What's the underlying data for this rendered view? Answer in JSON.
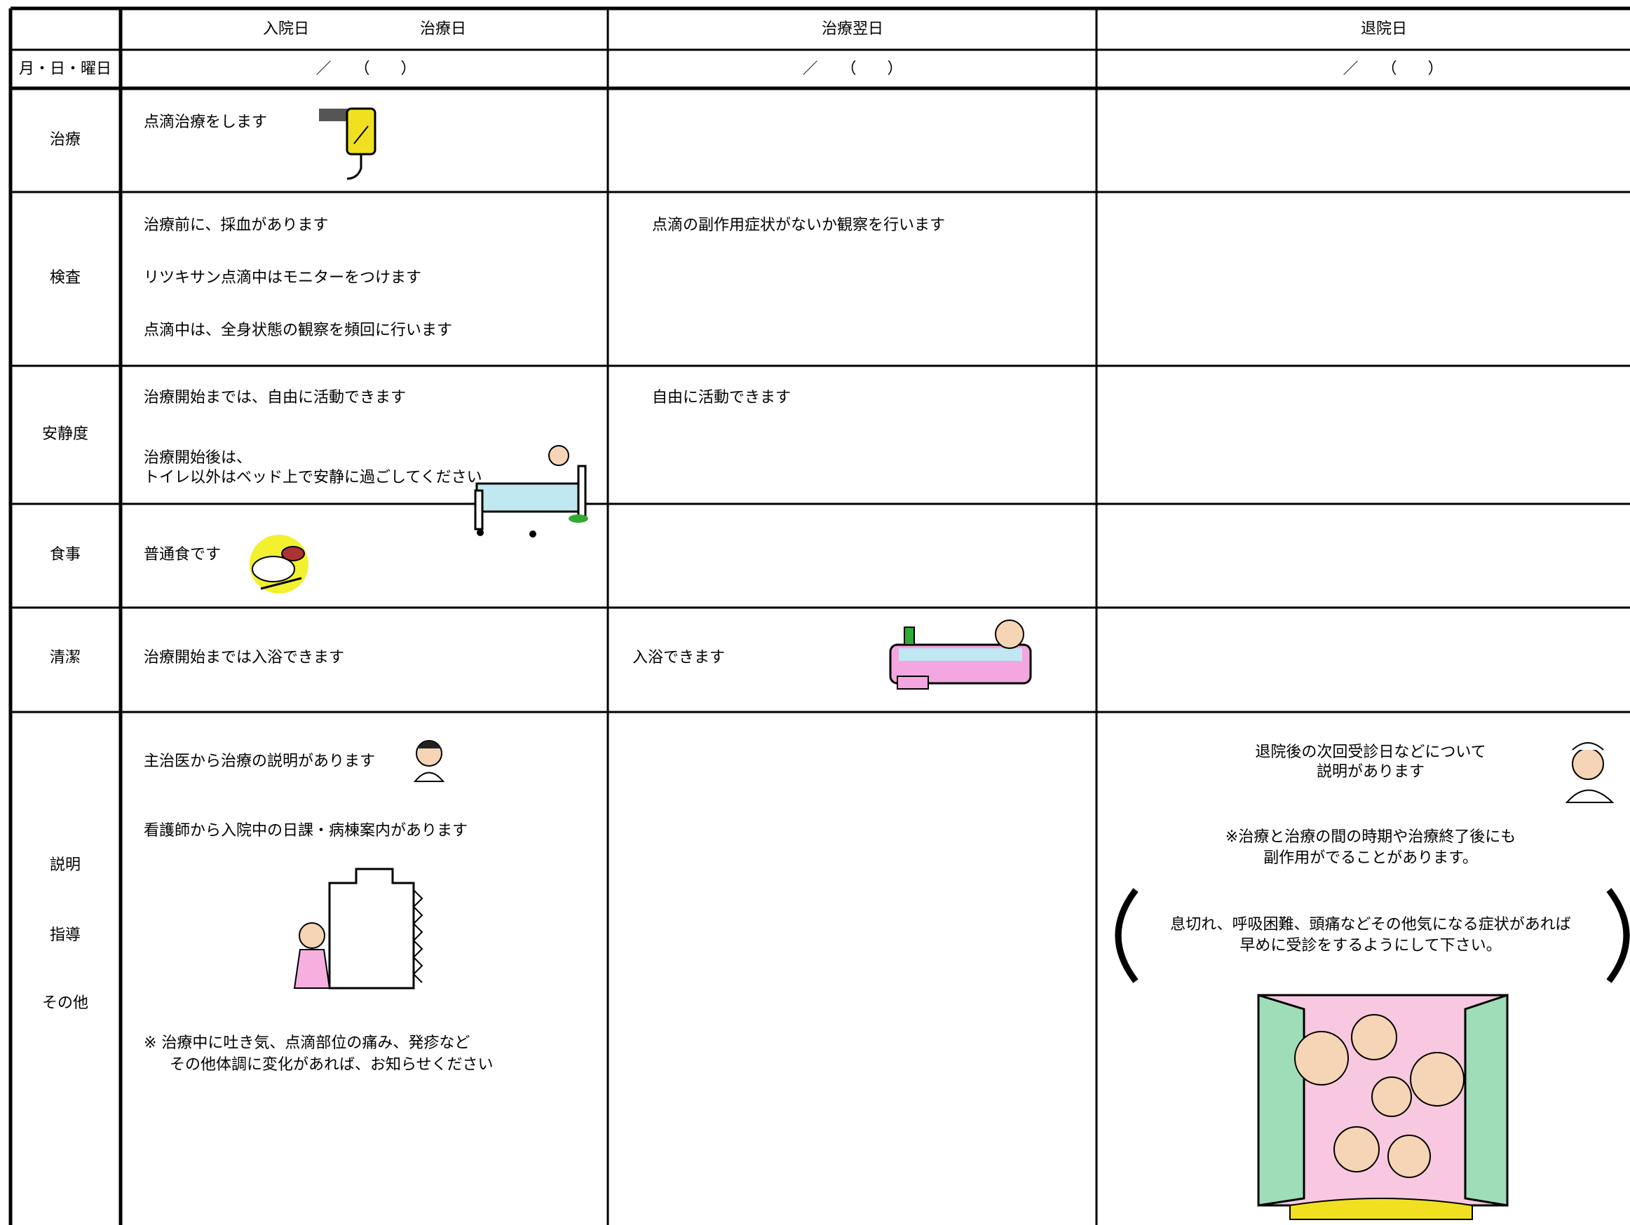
{
  "table": {
    "header": [
      "入院日",
      "治療日",
      "治療翌日",
      "退院日"
    ],
    "date_label": "月・日・曜日",
    "dates": [
      "／　　（　　）",
      "／　　（　　）",
      "／　　（　　）"
    ],
    "rows": [
      {
        "label": [
          "治療"
        ],
        "cells": [
          [
            "点滴治療をします"
          ],
          [],
          []
        ]
      },
      {
        "label": [
          "検査"
        ],
        "cells": [
          [
            "治療前に、採血があります",
            "リツキサン点滴中はモニターをつけます",
            "点滴中は、全身状態の観察を頻回に行います"
          ],
          [
            "点滴の副作用症状がないか観察を行います"
          ],
          []
        ]
      },
      {
        "label": [
          "安静度"
        ],
        "cells": [
          [
            "治療開始までは、自由に活動できます",
            "治療開始後は、",
            "トイレ以外はベッド上で安静に過ごしてください"
          ],
          [
            "自由に活動できます"
          ],
          []
        ]
      },
      {
        "label": [
          "食事"
        ],
        "cells": [
          [
            "普通食です"
          ],
          [],
          []
        ]
      },
      {
        "label": [
          "清潔"
        ],
        "cells": [
          [
            "治療開始までは入浴できます"
          ],
          [
            "入浴できます"
          ],
          []
        ]
      },
      {
        "label": [
          "説明",
          "指導",
          "その他"
        ],
        "cells": [
          [
            "主治医から治療の説明があります",
            "看護師から入院中の日課・病棟案内があります",
            "※ 治療中に吐き気、点滴部位の痛み、発疹など",
            "その他体調に変化があれば、お知らせください"
          ],
          [],
          [
            "退院後の次回受診日などについて",
            "説明があります",
            "※治療と治療の間の時期や治療終了後にも",
            "副作用がでることがあります。",
            "息切れ、呼吸困難、頭痛などその他気になる症状があれば",
            "早めに受診をするようにして下さい。"
          ]
        ]
      }
    ]
  }
}
